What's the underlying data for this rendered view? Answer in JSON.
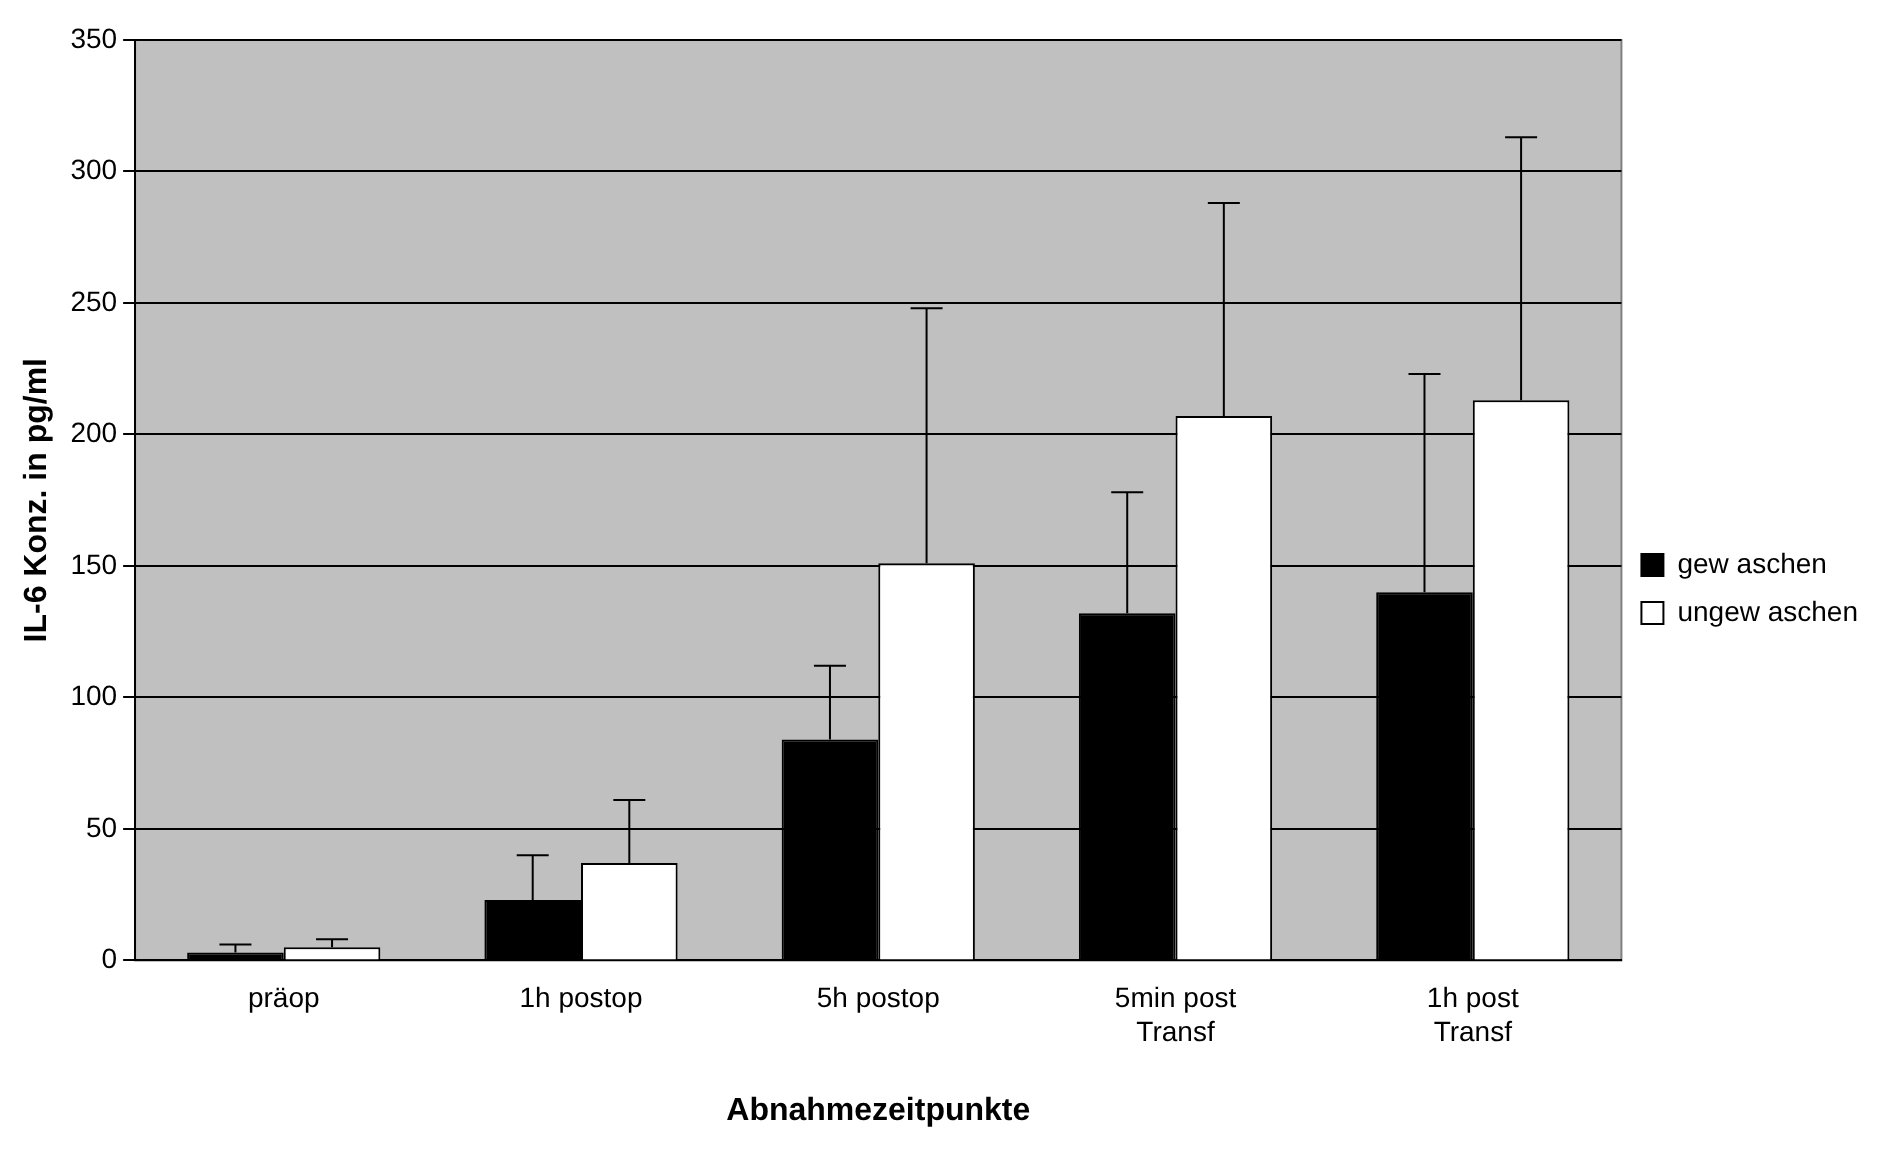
{
  "chart_data": {
    "type": "bar",
    "xlabel": "Abnahmezeitpunkte",
    "ylabel": "IL-6 Konz. in pg/ml",
    "categories": [
      "präop",
      "1h postop",
      "5h postop",
      "5min post Transf",
      "1h post Transf"
    ],
    "series": [
      {
        "name": "gew aschen",
        "color": "#000000",
        "values": [
          3,
          23,
          84,
          132,
          140
        ],
        "errors": [
          [
            3,
            6
          ],
          [
            23,
            40
          ],
          [
            84,
            112
          ],
          [
            132,
            178
          ],
          [
            140,
            223
          ]
        ]
      },
      {
        "name": "ungew aschen",
        "color": "#ffffff",
        "values": [
          5,
          37,
          151,
          207,
          213
        ],
        "errors": [
          [
            5,
            8
          ],
          [
            37,
            61
          ],
          [
            151,
            248
          ],
          [
            207,
            288
          ],
          [
            213,
            313
          ]
        ]
      }
    ],
    "ylim": [
      0,
      350
    ],
    "yticks": [
      0,
      50,
      100,
      150,
      200,
      250,
      300,
      350
    ],
    "grid": "y",
    "legend": "right"
  }
}
